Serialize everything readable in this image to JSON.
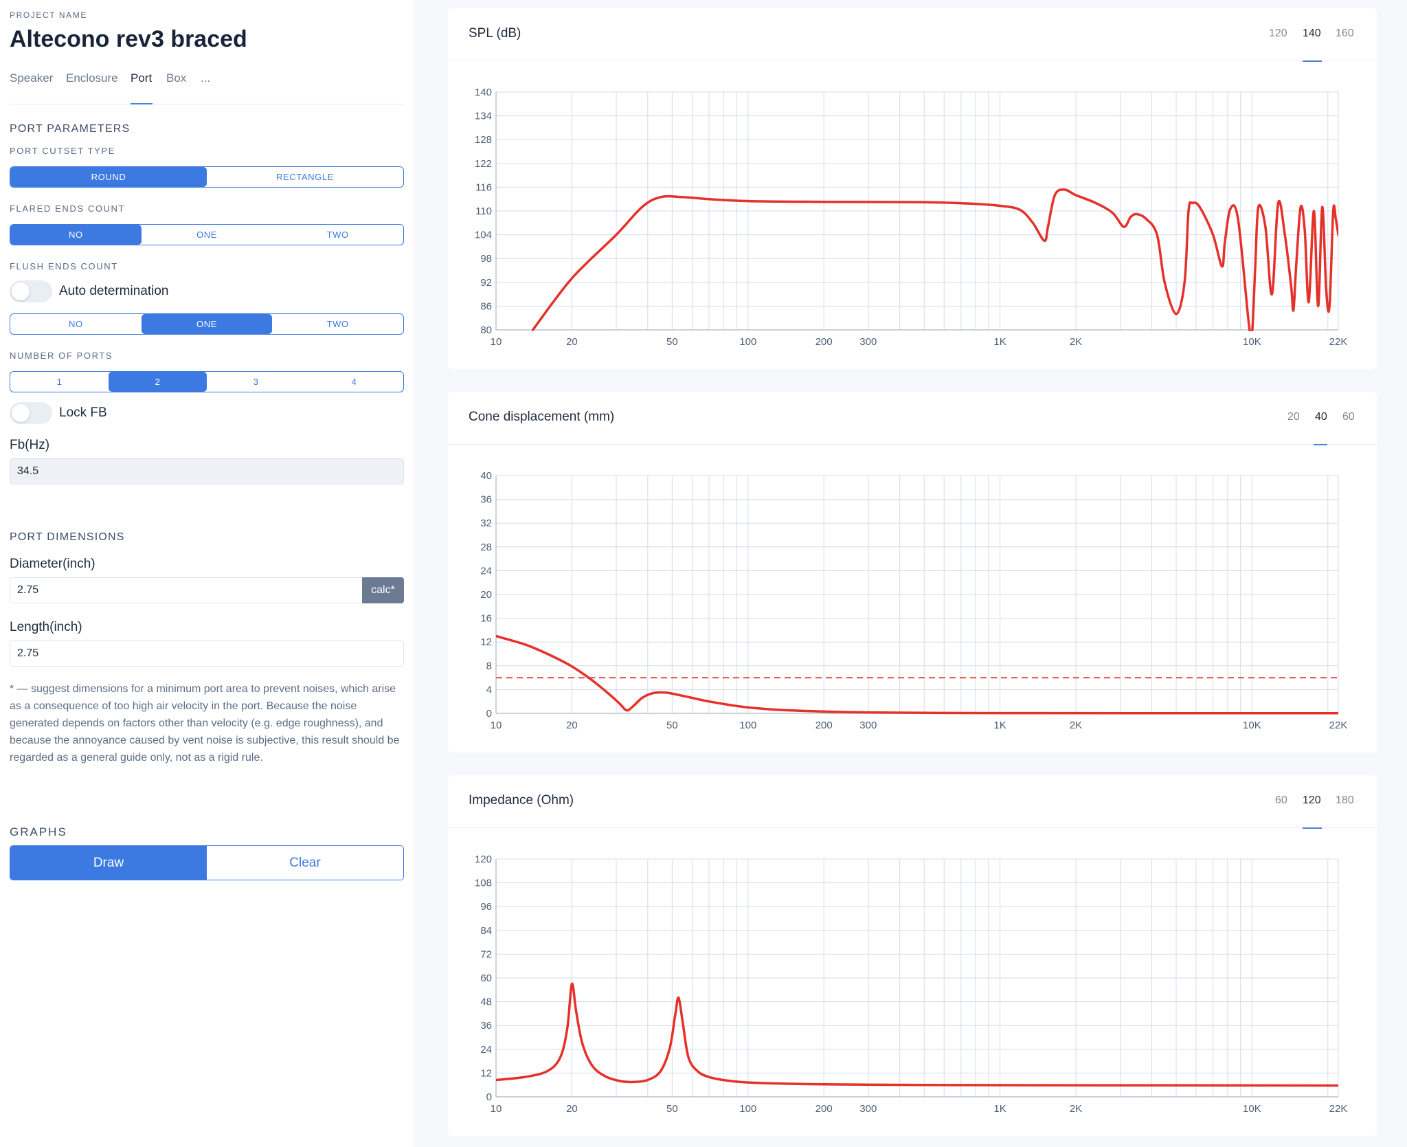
{
  "project": {
    "label": "PROJECT NAME",
    "name": "Altecono rev3 braced"
  },
  "tabs": [
    "Speaker",
    "Enclosure",
    "Port",
    "Box",
    "..."
  ],
  "port_parameters": {
    "heading": "PORT PARAMETERS",
    "cutset": {
      "label": "PORT CUTSET TYPE",
      "options": [
        "ROUND",
        "RECTANGLE"
      ],
      "selected": "ROUND"
    },
    "flared": {
      "label": "FLARED ENDS COUNT",
      "options": [
        "NO",
        "ONE",
        "TWO"
      ],
      "selected": "NO"
    },
    "flush": {
      "label": "FLUSH ENDS COUNT",
      "toggle_label": "Auto determination",
      "options": [
        "NO",
        "ONE",
        "TWO"
      ],
      "selected": "ONE"
    },
    "ports": {
      "label": "NUMBER OF PORTS",
      "options": [
        "1",
        "2",
        "3",
        "4"
      ],
      "selected": "2"
    },
    "lock_fb_label": "Lock FB",
    "fb_label": "Fb(Hz)",
    "fb_value": "34.5"
  },
  "port_dimensions": {
    "heading": "PORT DIMENSIONS",
    "diameter_label": "Diameter(inch)",
    "diameter_value": "2.75",
    "calc_label": "calc*",
    "length_label": "Length(inch)",
    "length_value": "2.75",
    "note": "* — suggest dimensions for a minimum port area to prevent noises, which arise as a consequence of too high air velocity in the port. Because the noise generated depends on factors other than velocity (e.g. edge roughness), and because the annoyance caused by vent noise is subjective, this result should be regarded as a general guide only, not as a rigid rule."
  },
  "graphs": {
    "heading": "GRAPHS",
    "draw_label": "Draw",
    "clear_label": "Clear"
  },
  "colors": {
    "accent": "#3c79e0",
    "curve": "#e5312a",
    "grid": "#d3dcec"
  },
  "chart_data": [
    {
      "type": "line",
      "title": "SPL (dB)",
      "range_options": [
        "120",
        "140",
        "160"
      ],
      "range_selected": "140",
      "x_scale": "log",
      "xlim": [
        10,
        22000
      ],
      "ylim": [
        80,
        140
      ],
      "x_ticks": [
        {
          "v": 10,
          "t": "10"
        },
        {
          "v": 20,
          "t": "20"
        },
        {
          "v": 50,
          "t": "50"
        },
        {
          "v": 100,
          "t": "100"
        },
        {
          "v": 200,
          "t": "200"
        },
        {
          "v": 300,
          "t": "300"
        },
        {
          "v": 1000,
          "t": "1K"
        },
        {
          "v": 2000,
          "t": "2K"
        },
        {
          "v": 10000,
          "t": "10K"
        },
        {
          "v": 22000,
          "t": "22K"
        }
      ],
      "y_ticks": [
        80,
        86,
        92,
        98,
        104,
        110,
        116,
        122,
        128,
        134,
        140
      ],
      "series": [
        {
          "name": "SPL",
          "x": [
            14,
            20,
            30,
            38,
            45,
            55,
            70,
            100,
            200,
            500,
            800,
            1000,
            1200,
            1350,
            1500,
            1550,
            1650,
            1800,
            2000,
            2400,
            2800,
            3100,
            3300,
            3500,
            3800,
            4200,
            4500,
            5000,
            5400,
            5600,
            5800,
            6200,
            7000,
            7600,
            7800,
            8200,
            8800,
            9700,
            10000,
            10300,
            10600,
            11300,
            12000,
            12700,
            13500,
            14300,
            14600,
            15000,
            15600,
            16200,
            16800,
            17600,
            18300,
            19000,
            19700,
            20300,
            21000,
            21500,
            22000
          ],
          "y": [
            80,
            93,
            104,
            111,
            113.5,
            113.5,
            113,
            112.5,
            112.3,
            112.2,
            111.8,
            111.3,
            110.3,
            107,
            102.5,
            106,
            114,
            115.4,
            114,
            112,
            109.5,
            106,
            108.5,
            109.2,
            108,
            104,
            92,
            84,
            92,
            110,
            112,
            111,
            104,
            96,
            102,
            110.5,
            108,
            82,
            78,
            96,
            111,
            106,
            89,
            112,
            104,
            91,
            85,
            97,
            111,
            105,
            87,
            110,
            86,
            111,
            90,
            86,
            110,
            108,
            104
          ]
        }
      ]
    },
    {
      "type": "line",
      "title": "Cone displacement (mm)",
      "range_options": [
        "20",
        "40",
        "60"
      ],
      "range_selected": "40",
      "x_scale": "log",
      "xlim": [
        10,
        22000
      ],
      "ylim": [
        0,
        40
      ],
      "x_ticks": [
        {
          "v": 10,
          "t": "10"
        },
        {
          "v": 20,
          "t": "20"
        },
        {
          "v": 50,
          "t": "50"
        },
        {
          "v": 100,
          "t": "100"
        },
        {
          "v": 200,
          "t": "200"
        },
        {
          "v": 300,
          "t": "300"
        },
        {
          "v": 1000,
          "t": "1K"
        },
        {
          "v": 2000,
          "t": "2K"
        },
        {
          "v": 10000,
          "t": "10K"
        },
        {
          "v": 22000,
          "t": "22K"
        }
      ],
      "y_ticks": [
        0,
        4,
        8,
        12,
        16,
        20,
        24,
        28,
        32,
        36,
        40
      ],
      "reference_line": 6,
      "series": [
        {
          "name": "Displacement",
          "x": [
            10,
            13,
            16,
            20,
            24,
            28,
            31,
            33,
            35,
            38,
            42,
            47,
            53,
            60,
            70,
            85,
            100,
            130,
            170,
            220,
            300,
            500,
            1000,
            22000
          ],
          "y": [
            13,
            11.6,
            10,
            7.9,
            5.6,
            3.3,
            1.6,
            0.5,
            1.2,
            2.6,
            3.4,
            3.5,
            3.1,
            2.6,
            2.0,
            1.4,
            1.0,
            0.6,
            0.4,
            0.25,
            0.15,
            0.08,
            0.05,
            0.02
          ]
        }
      ]
    },
    {
      "type": "line",
      "title": "Impedance (Ohm)",
      "range_options": [
        "60",
        "120",
        "180"
      ],
      "range_selected": "120",
      "x_scale": "log",
      "xlim": [
        10,
        22000
      ],
      "ylim": [
        0,
        120
      ],
      "x_ticks": [
        {
          "v": 10,
          "t": "10"
        },
        {
          "v": 20,
          "t": "20"
        },
        {
          "v": 50,
          "t": "50"
        },
        {
          "v": 100,
          "t": "100"
        },
        {
          "v": 200,
          "t": "200"
        },
        {
          "v": 300,
          "t": "300"
        },
        {
          "v": 1000,
          "t": "1K"
        },
        {
          "v": 2000,
          "t": "2K"
        },
        {
          "v": 10000,
          "t": "10K"
        },
        {
          "v": 22000,
          "t": "22K"
        }
      ],
      "y_ticks": [
        0,
        12,
        24,
        36,
        48,
        60,
        72,
        84,
        96,
        108,
        120
      ],
      "series": [
        {
          "name": "Impedance",
          "x": [
            10,
            13,
            16,
            18,
            19.2,
            20,
            20.8,
            22,
            24,
            27,
            31,
            35,
            40,
            45,
            49,
            51.5,
            53,
            55,
            58,
            63,
            70,
            85,
            110,
            200,
            500,
            1000,
            5000,
            22000
          ],
          "y": [
            8.5,
            10,
            13,
            20,
            35,
            57,
            43,
            27,
            16,
            10.5,
            8,
            7.5,
            8.5,
            13,
            25,
            42,
            50,
            38,
            20,
            13,
            10,
            8,
            7,
            6.3,
            6,
            5.9,
            5.8,
            5.7
          ]
        }
      ]
    }
  ]
}
